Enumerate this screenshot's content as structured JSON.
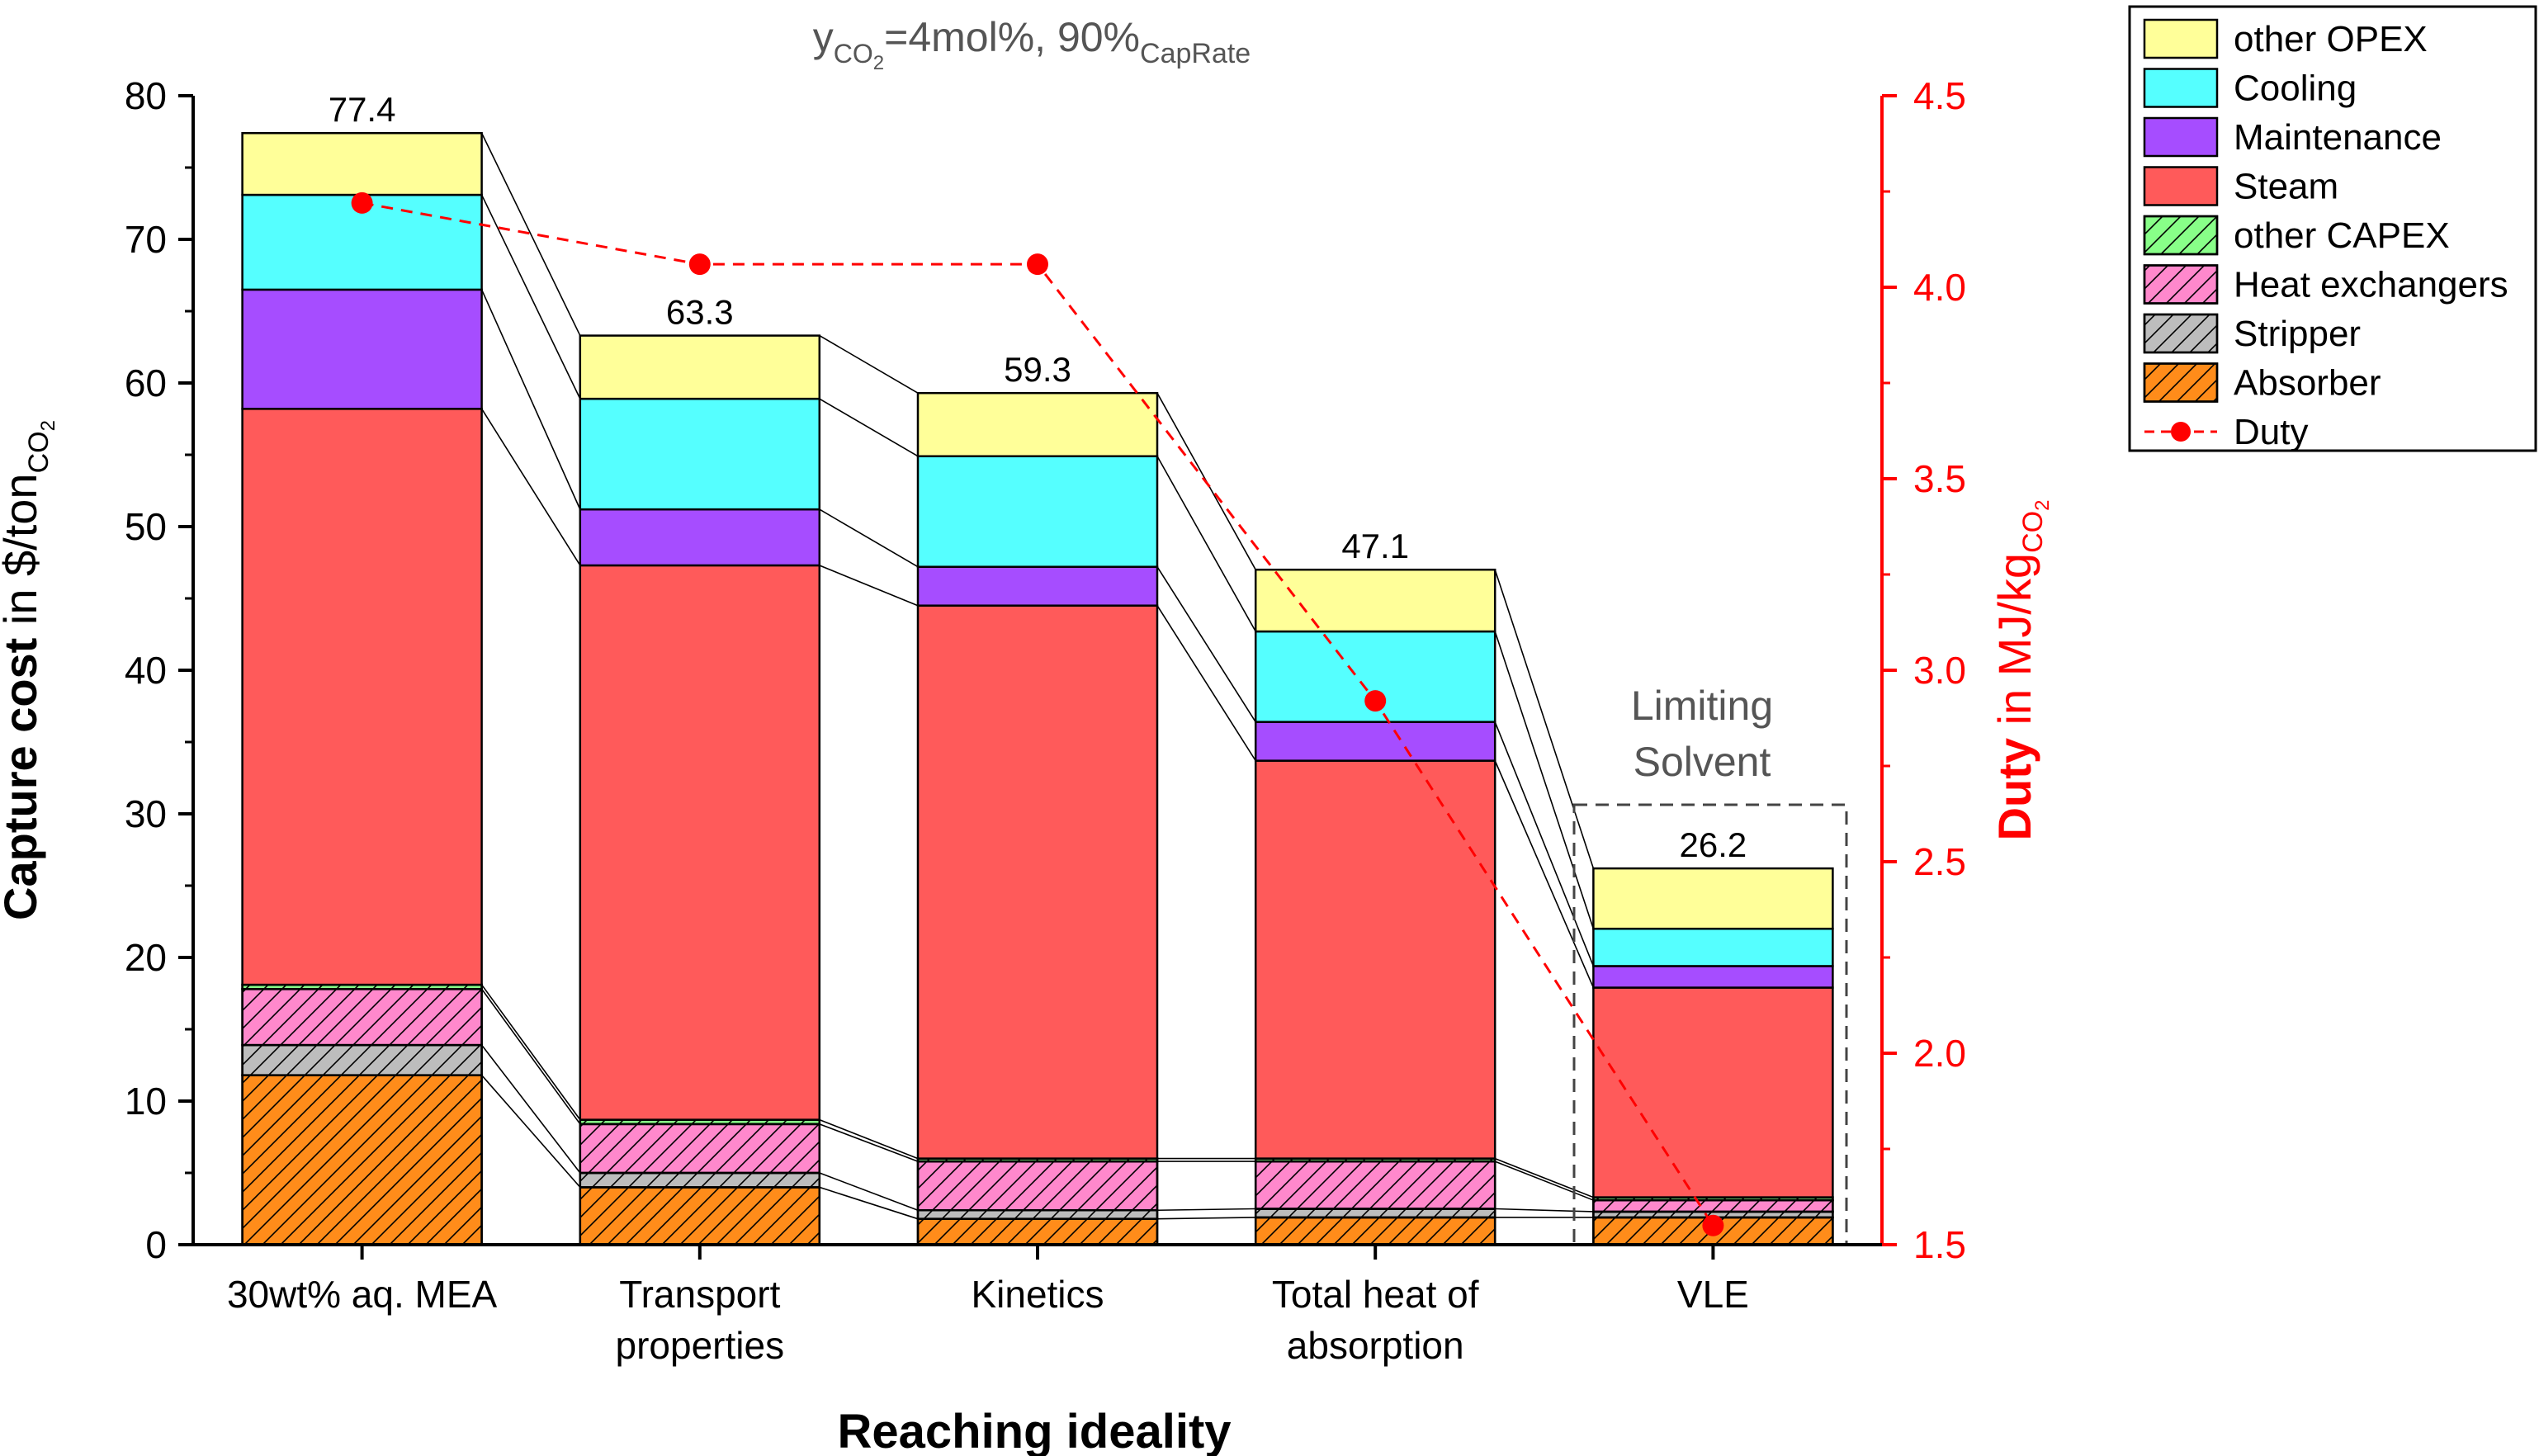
{
  "chart_data": {
    "type": "bar",
    "stacked": true,
    "title": {
      "y_sub": "CO",
      "y_sub2": "2",
      "mid": "=4mol%, 90%",
      "cap": "CapRate"
    },
    "xlabel": "Reaching ideality",
    "ylabel_left": {
      "bold": "Capture cost",
      "rest": " in $/ton",
      "sub": "CO",
      "sub2": "2"
    },
    "ylabel_right": {
      "bold": "Duty",
      "rest": " in MJ/kg",
      "sub": "CO",
      "sub2": "2"
    },
    "ylim_left": [
      0,
      80
    ],
    "yticks_left": [
      "0",
      "10",
      "20",
      "30",
      "40",
      "50",
      "60",
      "70",
      "80"
    ],
    "ylim_right": [
      1.5,
      4.5
    ],
    "yticks_right": [
      "1.5",
      "2.0",
      "2.5",
      "3.0",
      "3.5",
      "4.0",
      "4.5"
    ],
    "categories": [
      [
        "30wt% aq. MEA"
      ],
      [
        "Transport",
        "properties"
      ],
      [
        "Kinetics"
      ],
      [
        "Total heat of",
        "absorption"
      ],
      [
        "VLE"
      ]
    ],
    "totals": [
      "77.4",
      "63.3",
      "59.3",
      "47.1",
      "26.2"
    ],
    "series": [
      {
        "name": "Absorber",
        "color": "#ff8c1a",
        "hatch": true,
        "values": [
          11.8,
          4.0,
          1.8,
          1.9,
          1.9
        ]
      },
      {
        "name": "Stripper",
        "color": "#bdbdbd",
        "hatch": true,
        "values": [
          2.1,
          1.0,
          0.6,
          0.6,
          0.4
        ]
      },
      {
        "name": "Heat exchangers",
        "color": "#ff88cc",
        "hatch": true,
        "values": [
          3.9,
          3.4,
          3.4,
          3.3,
          0.8
        ]
      },
      {
        "name": "other CAPEX",
        "color": "#88ff88",
        "hatch": true,
        "values": [
          0.3,
          0.3,
          0.2,
          0.2,
          0.2
        ]
      },
      {
        "name": "Steam",
        "color": "#ff5a5a",
        "hatch": false,
        "values": [
          40.1,
          38.6,
          38.5,
          27.7,
          14.6
        ]
      },
      {
        "name": "Maintenance",
        "color": "#a64dff",
        "hatch": false,
        "values": [
          8.3,
          3.9,
          2.7,
          2.7,
          1.5
        ]
      },
      {
        "name": "Cooling",
        "color": "#55ffff",
        "hatch": false,
        "values": [
          6.6,
          7.7,
          7.7,
          6.3,
          2.6
        ]
      },
      {
        "name": "other OPEX",
        "color": "#ffff99",
        "hatch": false,
        "values": [
          4.3,
          4.4,
          4.4,
          4.3,
          4.2
        ]
      }
    ],
    "line_series": {
      "name": "Duty",
      "color": "#ff0000",
      "values": [
        4.22,
        4.06,
        4.06,
        2.92,
        1.55
      ]
    },
    "legend_order": [
      "other OPEX",
      "Cooling",
      "Maintenance",
      "Steam",
      "other CAPEX",
      "Heat exchangers",
      "Stripper",
      "Absorber",
      "Duty"
    ],
    "legend_position": "top-right, outside plot",
    "annotation": [
      "Limiting",
      "Solvent"
    ],
    "grid": false
  }
}
